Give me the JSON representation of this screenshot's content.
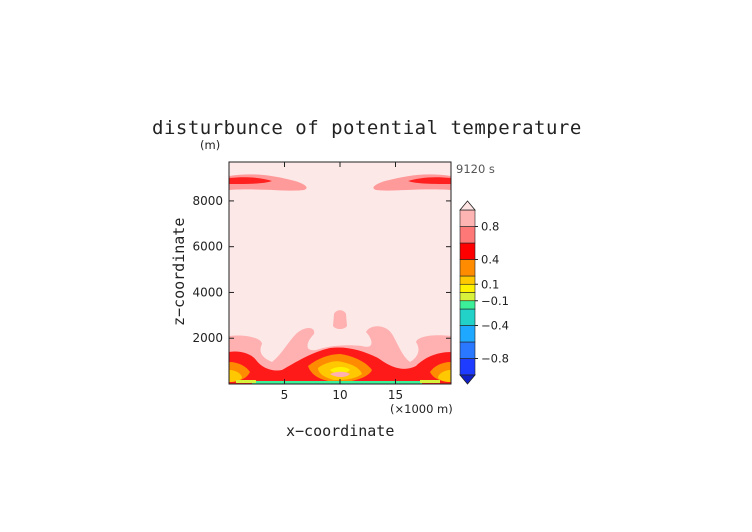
{
  "chart_data": {
    "type": "heatmap",
    "title": "disturbunce of potential temperature",
    "y_unit_label": "(m)",
    "time_label": "9120 s",
    "xlabel": "x−coordinate",
    "ylabel": "z−coordinate",
    "x_unit_label": "(×1000 m)",
    "xlim": [
      0,
      20
    ],
    "ylim": [
      0,
      9700
    ],
    "x_ticks": [
      5,
      10,
      15
    ],
    "x_tick_labels": [
      "5",
      "10",
      "15"
    ],
    "y_ticks": [
      2000,
      4000,
      6000,
      8000
    ],
    "y_tick_labels": [
      "2000",
      "4000",
      "6000",
      "8000"
    ],
    "colorbar": {
      "levels": [
        -1.0,
        -0.8,
        -0.6,
        -0.4,
        -0.2,
        -0.1,
        0,
        0.1,
        0.2,
        0.4,
        0.6,
        0.8,
        1.0
      ],
      "colors": [
        "#1e3cff",
        "#2a78ff",
        "#1ea8ff",
        "#22d2c8",
        "#3cf09a",
        "#d8f23c",
        "#fff200",
        "#ffc800",
        "#ff8c00",
        "#ff0000",
        "#ff7878",
        "#ffb4b4"
      ],
      "tick_labels": [
        "0.8",
        "0.4",
        "0.1",
        "−0.1",
        "−0.4",
        "−0.8"
      ],
      "tick_values": [
        0.8,
        0.4,
        0.1,
        -0.1,
        -0.4,
        -0.8
      ],
      "extend": "both"
    },
    "background_value_range": [
      0.8,
      1.0
    ],
    "grid": false
  }
}
